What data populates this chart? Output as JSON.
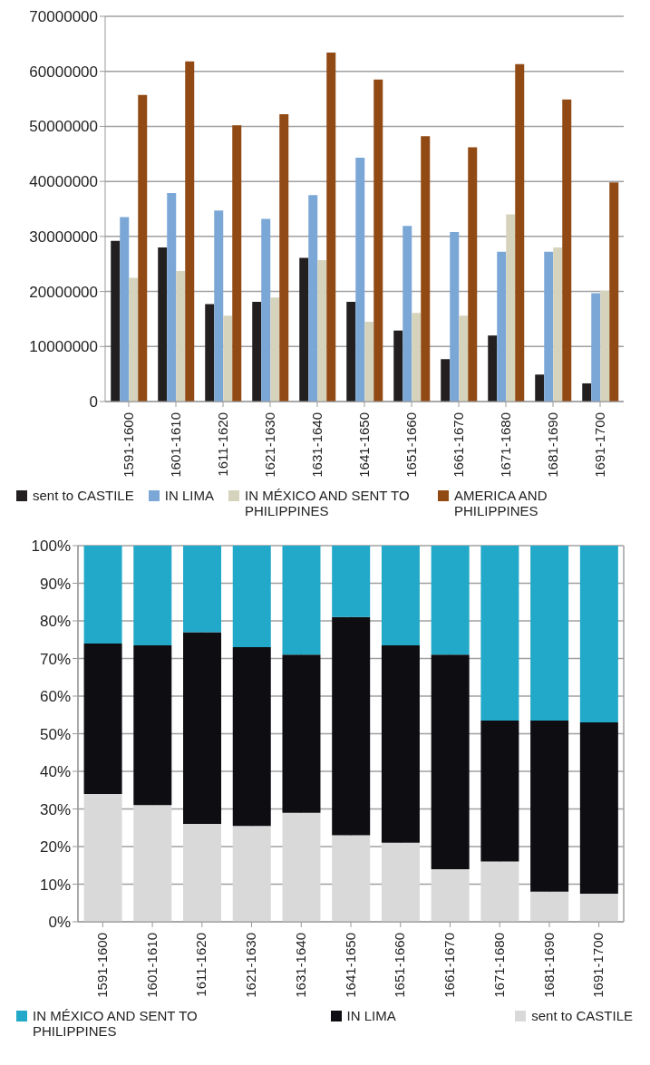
{
  "chart_data": [
    {
      "type": "bar",
      "categories": [
        "1591-1600",
        "1601-1610",
        "1611-1620",
        "1621-1630",
        "1631-1640",
        "1641-1650",
        "1651-1660",
        "1661-1670",
        "1671-1680",
        "1681-1690",
        "1691-1700"
      ],
      "series": [
        {
          "name": "sent to CASTILE",
          "color": "#231f20",
          "values": [
            29200000,
            28000000,
            17700000,
            18100000,
            26100000,
            18100000,
            12900000,
            7700000,
            12000000,
            4900000,
            3300000
          ]
        },
        {
          "name": "IN LIMA",
          "color": "#7ba7d7",
          "values": [
            33500000,
            37900000,
            34700000,
            33200000,
            37500000,
            44300000,
            31900000,
            30800000,
            27200000,
            27200000,
            19700000
          ]
        },
        {
          "name": "IN MÉXICO AND SENT TO PHILIPPINES",
          "color": "#d6d3bd",
          "values": [
            22500000,
            23700000,
            15600000,
            18900000,
            25700000,
            14500000,
            16100000,
            15600000,
            34000000,
            28000000,
            20100000
          ]
        },
        {
          "name": "AMERICA AND PHILIPPINES",
          "color": "#914a14",
          "values": [
            55700000,
            61800000,
            50200000,
            52200000,
            63400000,
            58500000,
            48200000,
            46200000,
            61300000,
            54900000,
            39800000
          ]
        }
      ],
      "ylim": [
        0,
        70000000
      ],
      "yticks": [
        0,
        10000000,
        20000000,
        30000000,
        40000000,
        50000000,
        60000000,
        70000000
      ],
      "grid": "y",
      "legend": "bottom"
    },
    {
      "type": "bar",
      "stacked": true,
      "categories": [
        "1591-1600",
        "1601-1610",
        "1611-1620",
        "1621-1630",
        "1631-1640",
        "1641-1650",
        "1651-1660",
        "1661-1670",
        "1671-1680",
        "1681-1690",
        "1691-1700"
      ],
      "series": [
        {
          "name": "sent to CASTILE",
          "color": "#d9d9d9",
          "values": [
            34,
            31,
            26,
            25.5,
            29,
            23,
            21,
            14,
            16,
            8,
            7.5
          ]
        },
        {
          "name": "IN LIMA",
          "color": "#0d0d12",
          "values": [
            40,
            42.5,
            51,
            47.5,
            42,
            58,
            52.5,
            57,
            37.5,
            45.5,
            45.5
          ]
        },
        {
          "name": "IN MÉXICO AND SENT TO PHILIPPINES",
          "color": "#22a8c8",
          "values": [
            26,
            26.5,
            23,
            27,
            29,
            19,
            26.5,
            29,
            46.5,
            46.5,
            47
          ]
        }
      ],
      "ylim": [
        0,
        100
      ],
      "yticks": [
        {
          "value": 0,
          "label": "0%"
        },
        {
          "value": 10,
          "label": "10%"
        },
        {
          "value": 20,
          "label": "20%"
        },
        {
          "value": 30,
          "label": "30%"
        },
        {
          "value": 40,
          "label": "40%"
        },
        {
          "value": 50,
          "label": "50%"
        },
        {
          "value": 60,
          "label": "60%"
        },
        {
          "value": 70,
          "label": "70%"
        },
        {
          "value": 80,
          "label": "80%"
        },
        {
          "value": 90,
          "label": "90%"
        },
        {
          "value": 100,
          "label": "100%"
        }
      ],
      "grid": true,
      "legend": "bottom"
    }
  ]
}
